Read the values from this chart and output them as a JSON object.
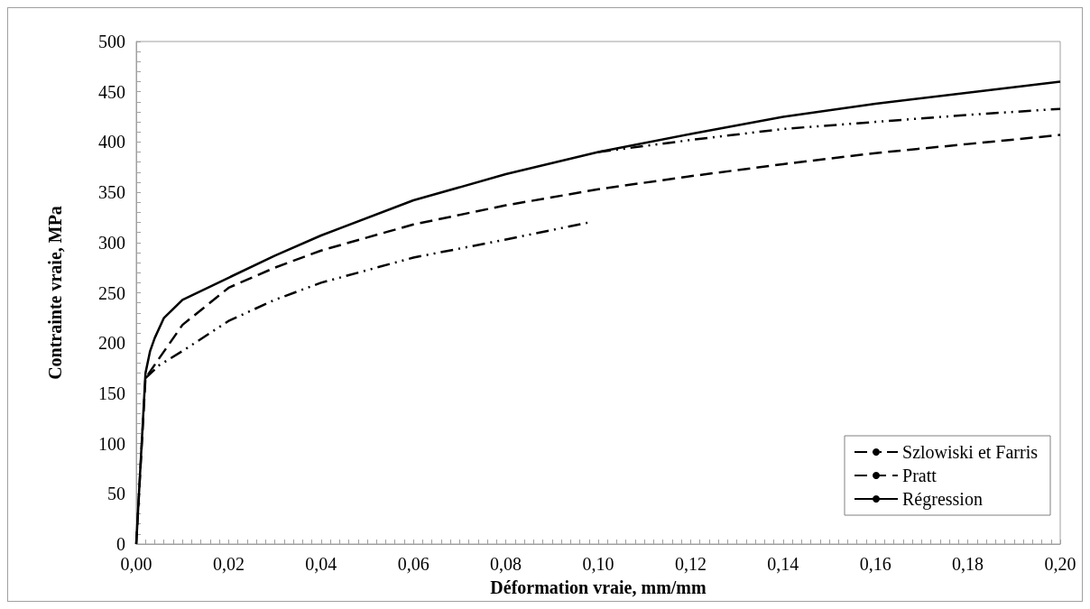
{
  "chart_data": {
    "type": "line",
    "xlabel": "Déformation vraie, mm/mm",
    "ylabel": "Contrainte vraie, MPa",
    "xlim": [
      0,
      0.2
    ],
    "ylim": [
      0,
      500
    ],
    "xticks": [
      {
        "value": 0,
        "label": "0,00"
      },
      {
        "value": 0.002,
        "label": null
      },
      {
        "value": 0.004,
        "label": null
      },
      {
        "value": 0.006,
        "label": null
      },
      {
        "value": 0.008,
        "label": null
      },
      {
        "value": 0.01,
        "label": null
      },
      {
        "value": 0.012,
        "label": null
      },
      {
        "value": 0.014,
        "label": null
      },
      {
        "value": 0.016,
        "label": null
      },
      {
        "value": 0.018,
        "label": null
      },
      {
        "value": 0.02,
        "label": "0,02"
      },
      {
        "value": 0.022,
        "label": null
      },
      {
        "value": 0.024,
        "label": null
      },
      {
        "value": 0.026,
        "label": null
      },
      {
        "value": 0.028,
        "label": null
      },
      {
        "value": 0.03,
        "label": null
      },
      {
        "value": 0.032,
        "label": null
      },
      {
        "value": 0.034,
        "label": null
      },
      {
        "value": 0.036,
        "label": null
      },
      {
        "value": 0.038,
        "label": null
      },
      {
        "value": 0.04,
        "label": "0,04"
      },
      {
        "value": 0.042,
        "label": null
      },
      {
        "value": 0.044,
        "label": null
      },
      {
        "value": 0.046,
        "label": null
      },
      {
        "value": 0.048,
        "label": null
      },
      {
        "value": 0.05,
        "label": null
      },
      {
        "value": 0.052,
        "label": null
      },
      {
        "value": 0.054,
        "label": null
      },
      {
        "value": 0.056,
        "label": null
      },
      {
        "value": 0.058,
        "label": null
      },
      {
        "value": 0.06,
        "label": "0,06"
      },
      {
        "value": 0.062,
        "label": null
      },
      {
        "value": 0.064,
        "label": null
      },
      {
        "value": 0.066,
        "label": null
      },
      {
        "value": 0.068,
        "label": null
      },
      {
        "value": 0.07,
        "label": null
      },
      {
        "value": 0.072,
        "label": null
      },
      {
        "value": 0.074,
        "label": null
      },
      {
        "value": 0.076,
        "label": null
      },
      {
        "value": 0.078,
        "label": null
      },
      {
        "value": 0.08,
        "label": "0,08"
      },
      {
        "value": 0.082,
        "label": null
      },
      {
        "value": 0.084,
        "label": null
      },
      {
        "value": 0.086,
        "label": null
      },
      {
        "value": 0.088,
        "label": null
      },
      {
        "value": 0.09,
        "label": null
      },
      {
        "value": 0.092,
        "label": null
      },
      {
        "value": 0.094,
        "label": null
      },
      {
        "value": 0.096,
        "label": null
      },
      {
        "value": 0.098,
        "label": null
      },
      {
        "value": 0.1,
        "label": "0,10"
      },
      {
        "value": 0.102,
        "label": null
      },
      {
        "value": 0.104,
        "label": null
      },
      {
        "value": 0.106,
        "label": null
      },
      {
        "value": 0.108,
        "label": null
      },
      {
        "value": 0.11,
        "label": null
      },
      {
        "value": 0.112,
        "label": null
      },
      {
        "value": 0.114,
        "label": null
      },
      {
        "value": 0.116,
        "label": null
      },
      {
        "value": 0.118,
        "label": null
      },
      {
        "value": 0.12,
        "label": "0,12"
      },
      {
        "value": 0.122,
        "label": null
      },
      {
        "value": 0.124,
        "label": null
      },
      {
        "value": 0.126,
        "label": null
      },
      {
        "value": 0.128,
        "label": null
      },
      {
        "value": 0.13,
        "label": null
      },
      {
        "value": 0.132,
        "label": null
      },
      {
        "value": 0.134,
        "label": null
      },
      {
        "value": 0.136,
        "label": null
      },
      {
        "value": 0.138,
        "label": null
      },
      {
        "value": 0.14,
        "label": "0,14"
      },
      {
        "value": 0.142,
        "label": null
      },
      {
        "value": 0.144,
        "label": null
      },
      {
        "value": 0.146,
        "label": null
      },
      {
        "value": 0.148,
        "label": null
      },
      {
        "value": 0.15,
        "label": null
      },
      {
        "value": 0.152,
        "label": null
      },
      {
        "value": 0.154,
        "label": null
      },
      {
        "value": 0.156,
        "label": null
      },
      {
        "value": 0.158,
        "label": null
      },
      {
        "value": 0.16,
        "label": "0,16"
      },
      {
        "value": 0.162,
        "label": null
      },
      {
        "value": 0.164,
        "label": null
      },
      {
        "value": 0.166,
        "label": null
      },
      {
        "value": 0.168,
        "label": null
      },
      {
        "value": 0.17,
        "label": null
      },
      {
        "value": 0.172,
        "label": null
      },
      {
        "value": 0.174,
        "label": null
      },
      {
        "value": 0.176,
        "label": null
      },
      {
        "value": 0.178,
        "label": null
      },
      {
        "value": 0.18,
        "label": "0,18"
      },
      {
        "value": 0.182,
        "label": null
      },
      {
        "value": 0.184,
        "label": null
      },
      {
        "value": 0.186,
        "label": null
      },
      {
        "value": 0.188,
        "label": null
      },
      {
        "value": 0.19,
        "label": null
      },
      {
        "value": 0.192,
        "label": null
      },
      {
        "value": 0.194,
        "label": null
      },
      {
        "value": 0.196,
        "label": null
      },
      {
        "value": 0.198,
        "label": null
      },
      {
        "value": 0.2,
        "label": "0,20"
      }
    ],
    "yticks": [
      0,
      {
        "value": 10,
        "label": null
      },
      {
        "value": 20,
        "label": null
      },
      {
        "value": 30,
        "label": null
      },
      {
        "value": 40,
        "label": null
      },
      50,
      {
        "value": 60,
        "label": null
      },
      {
        "value": 70,
        "label": null
      },
      {
        "value": 80,
        "label": null
      },
      {
        "value": 90,
        "label": null
      },
      100,
      {
        "value": 110,
        "label": null
      },
      {
        "value": 120,
        "label": null
      },
      {
        "value": 130,
        "label": null
      },
      {
        "value": 140,
        "label": null
      },
      150,
      {
        "value": 160,
        "label": null
      },
      {
        "value": 170,
        "label": null
      },
      {
        "value": 180,
        "label": null
      },
      {
        "value": 190,
        "label": null
      },
      200,
      {
        "value": 210,
        "label": null
      },
      {
        "value": 220,
        "label": null
      },
      {
        "value": 230,
        "label": null
      },
      {
        "value": 240,
        "label": null
      },
      250,
      {
        "value": 260,
        "label": null
      },
      {
        "value": 270,
        "label": null
      },
      {
        "value": 280,
        "label": null
      },
      {
        "value": 290,
        "label": null
      },
      300,
      {
        "value": 310,
        "label": null
      },
      {
        "value": 320,
        "label": null
      },
      {
        "value": 330,
        "label": null
      },
      {
        "value": 340,
        "label": null
      },
      350,
      {
        "value": 360,
        "label": null
      },
      {
        "value": 370,
        "label": null
      },
      {
        "value": 380,
        "label": null
      },
      {
        "value": 390,
        "label": null
      },
      400,
      {
        "value": 410,
        "label": null
      },
      {
        "value": 420,
        "label": null
      },
      {
        "value": 430,
        "label": null
      },
      {
        "value": 440,
        "label": null
      },
      450,
      {
        "value": 460,
        "label": null
      },
      {
        "value": 470,
        "label": null
      },
      {
        "value": 480,
        "label": null
      },
      {
        "value": 490,
        "label": null
      },
      500
    ],
    "grid": false,
    "legend": "bottom right",
    "marker": "none",
    "series": [
      {
        "name": "Szlowiski et Farris",
        "color": "#000000",
        "line_style": "dashdotdot",
        "x": [
          0.002,
          0.005,
          0.01,
          0.02,
          0.03,
          0.04,
          0.06,
          0.08,
          0.098,
          0.099,
          0.1,
          0.12,
          0.14,
          0.16,
          0.18,
          0.2
        ],
        "values": [
          165,
          178,
          192,
          222,
          243,
          260,
          285,
          303,
          320,
          null,
          390,
          402,
          413,
          420,
          427,
          433
        ]
      },
      {
        "name": "Pratt",
        "color": "#000000",
        "line_style": "dashed",
        "x": [
          0,
          0.002,
          0.005,
          0.01,
          0.02,
          0.03,
          0.04,
          0.06,
          0.08,
          0.1,
          0.12,
          0.14,
          0.16,
          0.18,
          0.2
        ],
        "values": [
          0,
          165,
          185,
          218,
          255,
          275,
          292,
          318,
          337,
          353,
          366,
          378,
          389,
          398,
          407
        ]
      },
      {
        "name": "Régression",
        "color": "#000000",
        "line_style": "solid",
        "x": [
          0,
          0.002,
          0.003,
          0.004,
          0.006,
          0.01,
          0.02,
          0.03,
          0.04,
          0.06,
          0.08,
          0.1,
          0.12,
          0.14,
          0.16,
          0.18,
          0.2
        ],
        "values": [
          0,
          170,
          192,
          205,
          225,
          243,
          265,
          287,
          307,
          342,
          368,
          390,
          408,
          425,
          438,
          449,
          460
        ]
      }
    ]
  }
}
